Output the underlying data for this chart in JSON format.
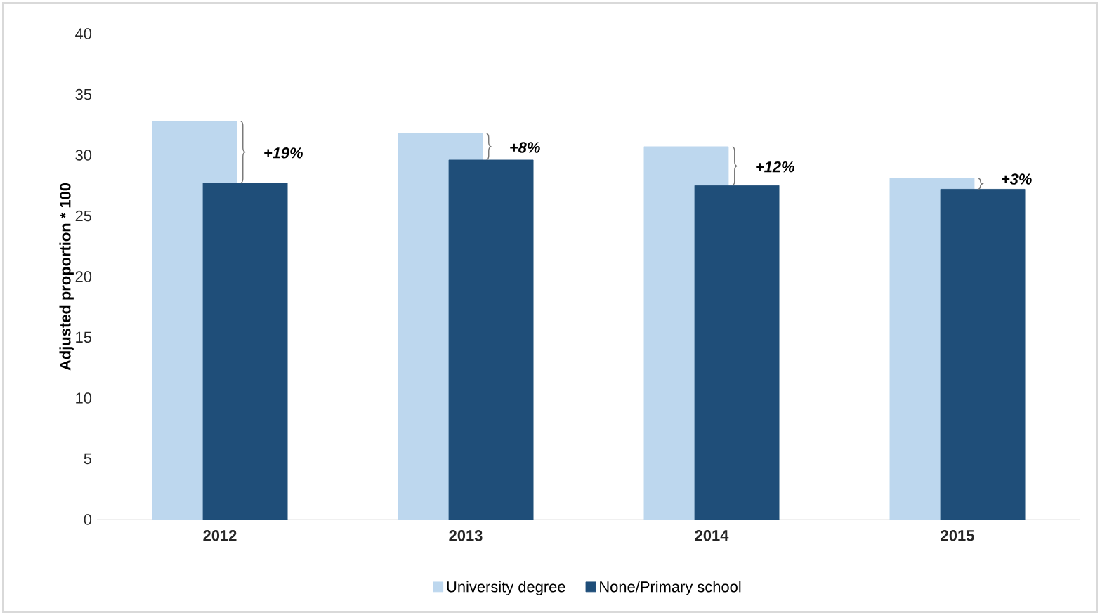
{
  "chart_data": {
    "type": "bar",
    "categories": [
      "2012",
      "2013",
      "2014",
      "2015"
    ],
    "series": [
      {
        "name": "University degree",
        "color": "#bdd7ee",
        "values": [
          32.8,
          31.8,
          30.7,
          28.1
        ]
      },
      {
        "name": "None/Primary school",
        "color": "#1f4e79",
        "values": [
          27.7,
          29.6,
          27.5,
          27.2
        ]
      }
    ],
    "ylabel": "Adjusted proportion * 100",
    "ylim": [
      0,
      40
    ],
    "yticks": [
      0,
      5,
      10,
      15,
      20,
      25,
      30,
      35,
      40
    ],
    "legend": "bottom",
    "annotations": [
      "+19%",
      "+8%",
      "+12%",
      "+3%"
    ]
  }
}
